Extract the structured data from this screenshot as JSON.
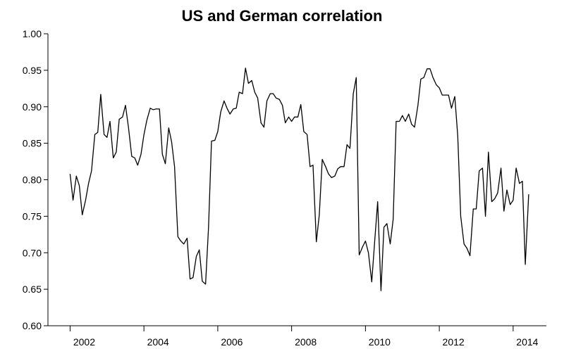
{
  "chart_data": {
    "type": "line",
    "title": "US and German correlation",
    "xlabel": "",
    "ylabel": "",
    "xlim": [
      2001.4,
      2014.9
    ],
    "ylim": [
      0.6,
      1.0
    ],
    "grid": false,
    "x_ticks": [
      2002,
      2004,
      2006,
      2008,
      2010,
      2012,
      2014
    ],
    "x_tick_labels": [
      "2002",
      "2004",
      "2006",
      "2008",
      "2010",
      "2012",
      "2014"
    ],
    "y_ticks": [
      0.6,
      0.65,
      0.7,
      0.75,
      0.8,
      0.85,
      0.9,
      0.95,
      1.0
    ],
    "y_tick_labels": [
      "0.60",
      "0.65",
      "0.70",
      "0.75",
      "0.80",
      "0.85",
      "0.90",
      "0.95",
      "1.00"
    ],
    "series": [
      {
        "x": [
          2002.0,
          2002.08,
          2002.17,
          2002.25,
          2002.33,
          2002.42,
          2002.5,
          2002.58,
          2002.67,
          2002.75,
          2002.83,
          2002.92,
          2003.0,
          2003.08,
          2003.17,
          2003.25,
          2003.33,
          2003.42,
          2003.5,
          2003.58,
          2003.67,
          2003.75,
          2003.83,
          2003.92,
          2004.0,
          2004.08,
          2004.17,
          2004.25,
          2004.33,
          2004.42,
          2004.5,
          2004.58,
          2004.67,
          2004.75,
          2004.83,
          2004.92,
          2005.0,
          2005.08,
          2005.17,
          2005.25,
          2005.33,
          2005.42,
          2005.5,
          2005.58,
          2005.67,
          2005.75,
          2005.83,
          2005.92,
          2006.0,
          2006.08,
          2006.17,
          2006.25,
          2006.33,
          2006.42,
          2006.5,
          2006.58,
          2006.67,
          2006.75,
          2006.83,
          2006.92,
          2007.0,
          2007.08,
          2007.17,
          2007.25,
          2007.33,
          2007.42,
          2007.5,
          2007.58,
          2007.67,
          2007.75,
          2007.83,
          2007.92,
          2008.0,
          2008.08,
          2008.17,
          2008.25,
          2008.33,
          2008.42,
          2008.5,
          2008.58,
          2008.67,
          2008.75,
          2008.83,
          2008.92,
          2009.0,
          2009.08,
          2009.17,
          2009.25,
          2009.33,
          2009.42,
          2009.5,
          2009.58,
          2009.67,
          2009.75,
          2009.83,
          2009.92,
          2010.0,
          2010.08,
          2010.17,
          2010.25,
          2010.33,
          2010.42,
          2010.5,
          2010.58,
          2010.67,
          2010.75,
          2010.83,
          2010.92,
          2011.0,
          2011.08,
          2011.17,
          2011.25,
          2011.33,
          2011.42,
          2011.5,
          2011.58,
          2011.67,
          2011.75,
          2011.83,
          2011.92,
          2012.0,
          2012.08,
          2012.17,
          2012.25,
          2012.33,
          2012.42,
          2012.5,
          2012.58,
          2012.67,
          2012.75,
          2012.83,
          2012.92,
          2013.0,
          2013.08,
          2013.17,
          2013.25,
          2013.33,
          2013.42,
          2013.5,
          2013.58,
          2013.67,
          2013.75,
          2013.83,
          2013.92,
          2014.0,
          2014.08,
          2014.17,
          2014.25,
          2014.33,
          2014.42
        ],
        "values": [
          0.808,
          0.772,
          0.805,
          0.792,
          0.752,
          0.772,
          0.795,
          0.812,
          0.862,
          0.865,
          0.917,
          0.862,
          0.858,
          0.88,
          0.83,
          0.838,
          0.883,
          0.886,
          0.902,
          0.872,
          0.832,
          0.83,
          0.82,
          0.835,
          0.862,
          0.882,
          0.898,
          0.896,
          0.897,
          0.897,
          0.835,
          0.822,
          0.871,
          0.852,
          0.818,
          0.722,
          0.716,
          0.712,
          0.72,
          0.664,
          0.666,
          0.695,
          0.704,
          0.661,
          0.657,
          0.735,
          0.853,
          0.854,
          0.866,
          0.893,
          0.908,
          0.898,
          0.89,
          0.897,
          0.898,
          0.92,
          0.918,
          0.953,
          0.932,
          0.936,
          0.92,
          0.912,
          0.878,
          0.872,
          0.908,
          0.918,
          0.918,
          0.912,
          0.91,
          0.902,
          0.878,
          0.886,
          0.88,
          0.886,
          0.886,
          0.903,
          0.866,
          0.862,
          0.818,
          0.82,
          0.715,
          0.752,
          0.828,
          0.818,
          0.808,
          0.803,
          0.805,
          0.815,
          0.818,
          0.818,
          0.848,
          0.843,
          0.918,
          0.94,
          0.697,
          0.708,
          0.716,
          0.7,
          0.66,
          0.716,
          0.77,
          0.648,
          0.735,
          0.74,
          0.712,
          0.746,
          0.88,
          0.88,
          0.888,
          0.88,
          0.89,
          0.876,
          0.872,
          0.902,
          0.938,
          0.94,
          0.952,
          0.952,
          0.94,
          0.93,
          0.926,
          0.916,
          0.916,
          0.916,
          0.898,
          0.914,
          0.86,
          0.75,
          0.712,
          0.706,
          0.696,
          0.76,
          0.76,
          0.812,
          0.816,
          0.75,
          0.838,
          0.77,
          0.774,
          0.782,
          0.816,
          0.757,
          0.786,
          0.766,
          0.772,
          0.816,
          0.795,
          0.798,
          0.684,
          0.78
        ]
      }
    ]
  }
}
